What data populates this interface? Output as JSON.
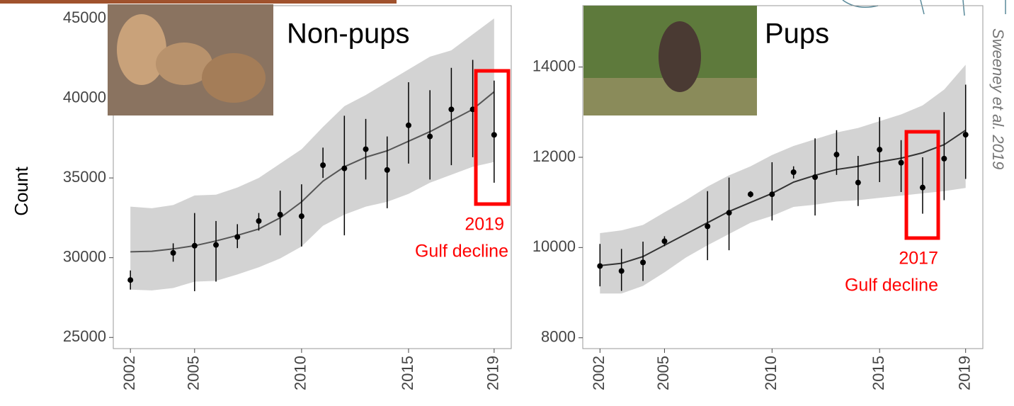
{
  "y_label": "Count",
  "citation": "Sweeney et al. 2019",
  "chart_data": [
    {
      "type": "line",
      "title": "Non-pups",
      "annotation": [
        "2019",
        "Gulf decline"
      ],
      "x": [
        2002,
        2003,
        2004,
        2005,
        2006,
        2007,
        2008,
        2009,
        2010,
        2011,
        2012,
        2013,
        2014,
        2015,
        2016,
        2017,
        2018,
        2019
      ],
      "xlim": [
        2001.2,
        2019.8
      ],
      "xticks": [
        2002,
        2005,
        2010,
        2015,
        2019
      ],
      "ylim": [
        24300,
        45800
      ],
      "yticks": [
        25000,
        30000,
        35000,
        40000,
        45000
      ],
      "points": {
        "color": "#000000",
        "values": [
          28600,
          null,
          30300,
          30750,
          30800,
          31300,
          32300,
          32700,
          32600,
          35800,
          35600,
          36800,
          35500,
          38300,
          37600,
          39300,
          39300,
          37700
        ],
        "lower": [
          28000,
          null,
          29750,
          27900,
          28500,
          30600,
          31700,
          31400,
          30700,
          35000,
          31400,
          34900,
          33100,
          35900,
          34900,
          35800,
          36300,
          34700
        ],
        "upper": [
          29200,
          null,
          30900,
          32800,
          32300,
          32100,
          32800,
          34200,
          34600,
          36900,
          38900,
          38700,
          37600,
          41000,
          40500,
          41900,
          42400,
          41100
        ]
      },
      "trend": {
        "color": "#555555",
        "band_color": "#d3d3d3",
        "values": [
          30370,
          30400,
          30550,
          30750,
          31050,
          31400,
          31800,
          32500,
          33500,
          34800,
          35700,
          36300,
          36700,
          37300,
          37900,
          38600,
          39300,
          40400
        ],
        "lower": [
          28000,
          27950,
          28100,
          28500,
          28550,
          28950,
          29400,
          29950,
          30700,
          32000,
          32700,
          33200,
          33500,
          34000,
          34700,
          35200,
          35700,
          36000
        ],
        "upper": [
          33200,
          33100,
          33300,
          33900,
          33950,
          34400,
          35000,
          35900,
          36800,
          38200,
          39500,
          40200,
          41000,
          41800,
          42600,
          43000,
          44000,
          45000
        ]
      }
    },
    {
      "type": "line",
      "title": "Pups",
      "annotation": [
        "2017",
        "Gulf decline"
      ],
      "x": [
        2002,
        2003,
        2004,
        2005,
        2006,
        2007,
        2008,
        2009,
        2010,
        2011,
        2012,
        2013,
        2014,
        2015,
        2016,
        2017,
        2018,
        2019
      ],
      "xlim": [
        2001.2,
        2019.8
      ],
      "xticks": [
        2002,
        2005,
        2010,
        2015,
        2019
      ],
      "ylim": [
        7760,
        15360
      ],
      "yticks": [
        8000,
        10000,
        12000,
        14000
      ],
      "points": {
        "color": "#000000",
        "values": [
          9590,
          9480,
          9670,
          10140,
          null,
          10470,
          10770,
          11180,
          11180,
          11670,
          11560,
          12060,
          11440,
          12170,
          11880,
          11330,
          11970,
          12500
        ],
        "lower": [
          9140,
          9040,
          9260,
          10030,
          null,
          9720,
          9940,
          11110,
          10600,
          11530,
          10710,
          11610,
          10920,
          11450,
          11230,
          10750,
          11050,
          11520
        ],
        "upper": [
          10080,
          9970,
          10130,
          10250,
          null,
          11250,
          11550,
          11250,
          11890,
          11800,
          12420,
          12600,
          12030,
          12890,
          12380,
          12000,
          13000,
          13610
        ]
      },
      "trend": {
        "color": "#333333",
        "band_color": "#d3d3d3",
        "values": [
          9600,
          9650,
          9800,
          10050,
          10300,
          10550,
          10800,
          11000,
          11200,
          11450,
          11600,
          11730,
          11800,
          11900,
          11980,
          12100,
          12280,
          12600
        ],
        "lower": [
          8980,
          8980,
          9150,
          9450,
          9780,
          10050,
          10300,
          10550,
          10700,
          10900,
          10950,
          11020,
          11050,
          11100,
          11150,
          11200,
          11250,
          11320
        ],
        "upper": [
          10320,
          10380,
          10500,
          10780,
          11050,
          11350,
          11600,
          11800,
          12050,
          12250,
          12400,
          12550,
          12650,
          12800,
          12950,
          13150,
          13500,
          14050
        ]
      }
    }
  ]
}
